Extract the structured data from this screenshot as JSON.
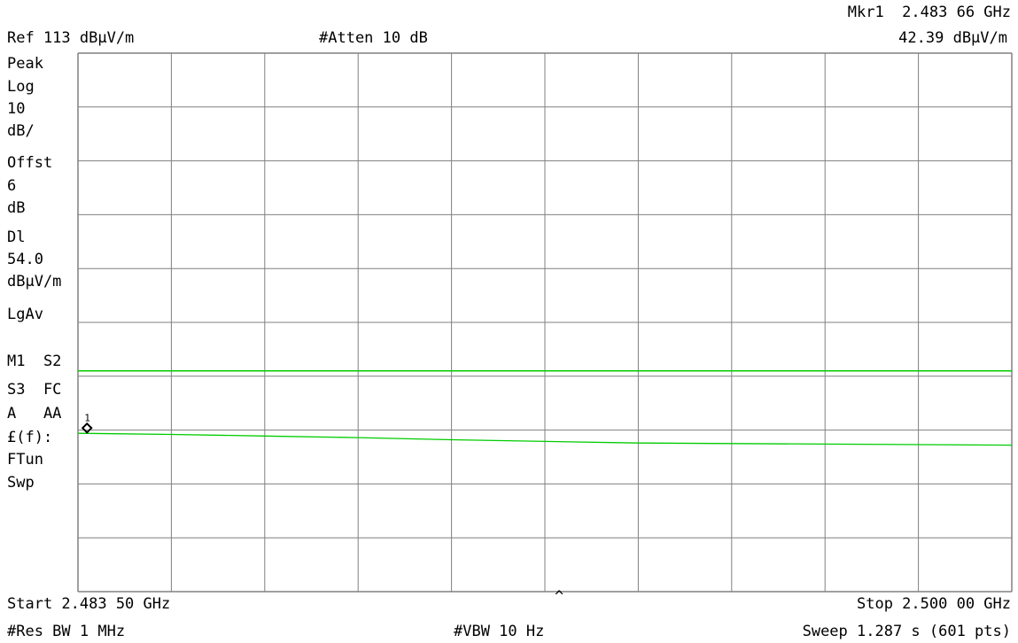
{
  "header": {
    "marker_label": "Mkr1  2.483 66 GHz",
    "ref_level": "Ref 113 dBµV/m",
    "attenuation": "#Atten 10 dB",
    "marker_amplitude": "42.39 dBµV/m"
  },
  "side_panel": {
    "lines": [
      "Peak",
      "Log",
      "10",
      "dB/",
      "Offst",
      "6",
      "dB",
      "Dl",
      "54.0",
      "dBµV/m",
      "LgAv",
      "",
      "M1  S2",
      "S3  FC",
      "A   AA",
      "£(f):",
      "FTun",
      "Swp"
    ]
  },
  "footer": {
    "start": "Start 2.483 50 GHz",
    "stop": "Stop 2.500 00 GHz",
    "res_bw": "#Res BW 1 MHz",
    "vbw": "#VBW 10 Hz",
    "sweep": "Sweep 1.287 s (601 pts)",
    "center_caret": "^"
  },
  "marker": {
    "label": "1"
  },
  "colors": {
    "trace": "#00cc00",
    "grid": "#808080",
    "display_line": "#00cc00",
    "marker": "#000000"
  },
  "chart_data": {
    "type": "line",
    "x_unit": "GHz",
    "y_unit": "dBµV/m",
    "xlim": [
      2.4835,
      2.5
    ],
    "ylim": [
      13,
      113
    ],
    "grid": true,
    "display_line": 54.0,
    "marker": {
      "x": 2.48366,
      "y": 42.39
    },
    "series": [
      {
        "x": [
          2.4835,
          2.48515,
          2.4868,
          2.48845,
          2.4901,
          2.49175,
          2.4934,
          2.49505,
          2.4967,
          2.49835,
          2.5
        ],
        "y": [
          42.4,
          42.2,
          41.9,
          41.6,
          41.2,
          40.9,
          40.6,
          40.5,
          40.4,
          40.3,
          40.2
        ]
      }
    ]
  }
}
